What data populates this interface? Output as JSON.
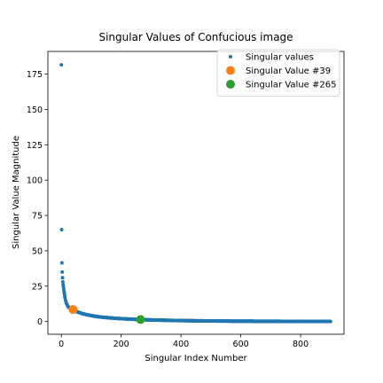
{
  "chart_data": {
    "type": "scatter",
    "title": "Singular Values of Confucious image",
    "xlabel": "Singular Index Number",
    "ylabel": "Singular Value Magnitude",
    "xlim": [
      -45,
      945
    ],
    "ylim": [
      -9,
      191
    ],
    "xticks": [
      0,
      200,
      400,
      600,
      800
    ],
    "yticks": [
      0,
      25,
      50,
      75,
      100,
      125,
      150,
      175
    ],
    "grid": false,
    "legend_position": "top-right",
    "series": [
      {
        "name": "Singular values",
        "color": "#1f77b4",
        "marker_size": "small",
        "x": [
          0,
          1,
          2,
          3,
          4,
          5,
          6,
          7,
          8,
          9,
          10,
          11,
          12,
          14,
          16,
          18,
          20,
          23,
          26,
          30,
          35,
          45,
          55,
          70,
          90,
          110,
          130,
          160,
          200,
          250,
          300,
          350,
          400,
          450,
          500,
          550,
          600,
          650,
          700,
          750,
          800,
          850,
          900
        ],
        "y": [
          181.5,
          65,
          41.5,
          35,
          31,
          28,
          26,
          24.5,
          23,
          21.5,
          20,
          18.5,
          17,
          15,
          13.5,
          12.5,
          11.5,
          10.5,
          9.8,
          9.2,
          8.6,
          7.5,
          6.7,
          5.6,
          4.6,
          3.8,
          3.2,
          2.6,
          2.0,
          1.5,
          1.1,
          0.85,
          0.65,
          0.5,
          0.4,
          0.3,
          0.25,
          0.2,
          0.15,
          0.12,
          0.1,
          0.08,
          0.05
        ]
      },
      {
        "name": "Singular Value #39",
        "color": "#ff7f0e",
        "marker_size": "large",
        "x": [
          39
        ],
        "y": [
          8.5
        ]
      },
      {
        "name": "Singular Value #265",
        "color": "#2ca02c",
        "marker_size": "large",
        "x": [
          265
        ],
        "y": [
          1.4
        ]
      }
    ]
  }
}
